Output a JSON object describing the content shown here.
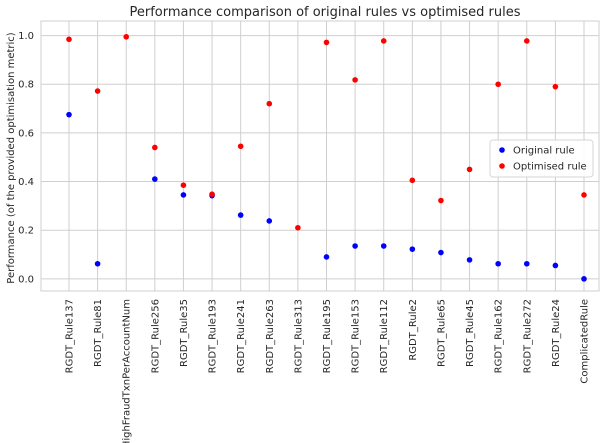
{
  "chart_data": {
    "type": "scatter",
    "title": "Performance comparison of original rules vs optimised rules",
    "xlabel": "",
    "ylabel": "Performance (of the provided optimisation metric)",
    "categories": [
      "RGDT_Rule137",
      "RGDT_Rule81",
      "HighFraudTxnPerAccountNum",
      "RGDT_Rule256",
      "RGDT_Rule35",
      "RGDT_Rule193",
      "RGDT_Rule241",
      "RGDT_Rule263",
      "RGDT_Rule313",
      "RGDT_Rule195",
      "RGDT_Rule153",
      "RGDT_Rule112",
      "RGDT_Rule2",
      "RGDT_Rule65",
      "RGDT_Rule45",
      "RGDT_Rule162",
      "RGDT_Rule272",
      "RGDT_Rule24",
      "ComplicatedRule"
    ],
    "series": [
      {
        "name": "Original rule",
        "color": "#0000ff",
        "values": [
          0.675,
          0.062,
          null,
          0.41,
          0.345,
          0.342,
          0.262,
          0.238,
          null,
          0.09,
          0.135,
          0.135,
          0.122,
          0.108,
          0.078,
          0.062,
          0.062,
          0.055,
          0.0
        ]
      },
      {
        "name": "Optimised rule",
        "color": "#ff0000",
        "values": [
          0.985,
          0.772,
          0.995,
          0.54,
          0.385,
          0.348,
          0.545,
          0.72,
          0.21,
          0.972,
          0.818,
          0.978,
          0.405,
          0.322,
          0.45,
          0.8,
          0.978,
          0.79,
          0.345
        ]
      }
    ],
    "yticks": [
      "0.0",
      "0.2",
      "0.4",
      "0.6",
      "0.8",
      "1.0"
    ],
    "ylim": [
      -0.05,
      1.06
    ],
    "grid": true,
    "legend": "center-right"
  }
}
